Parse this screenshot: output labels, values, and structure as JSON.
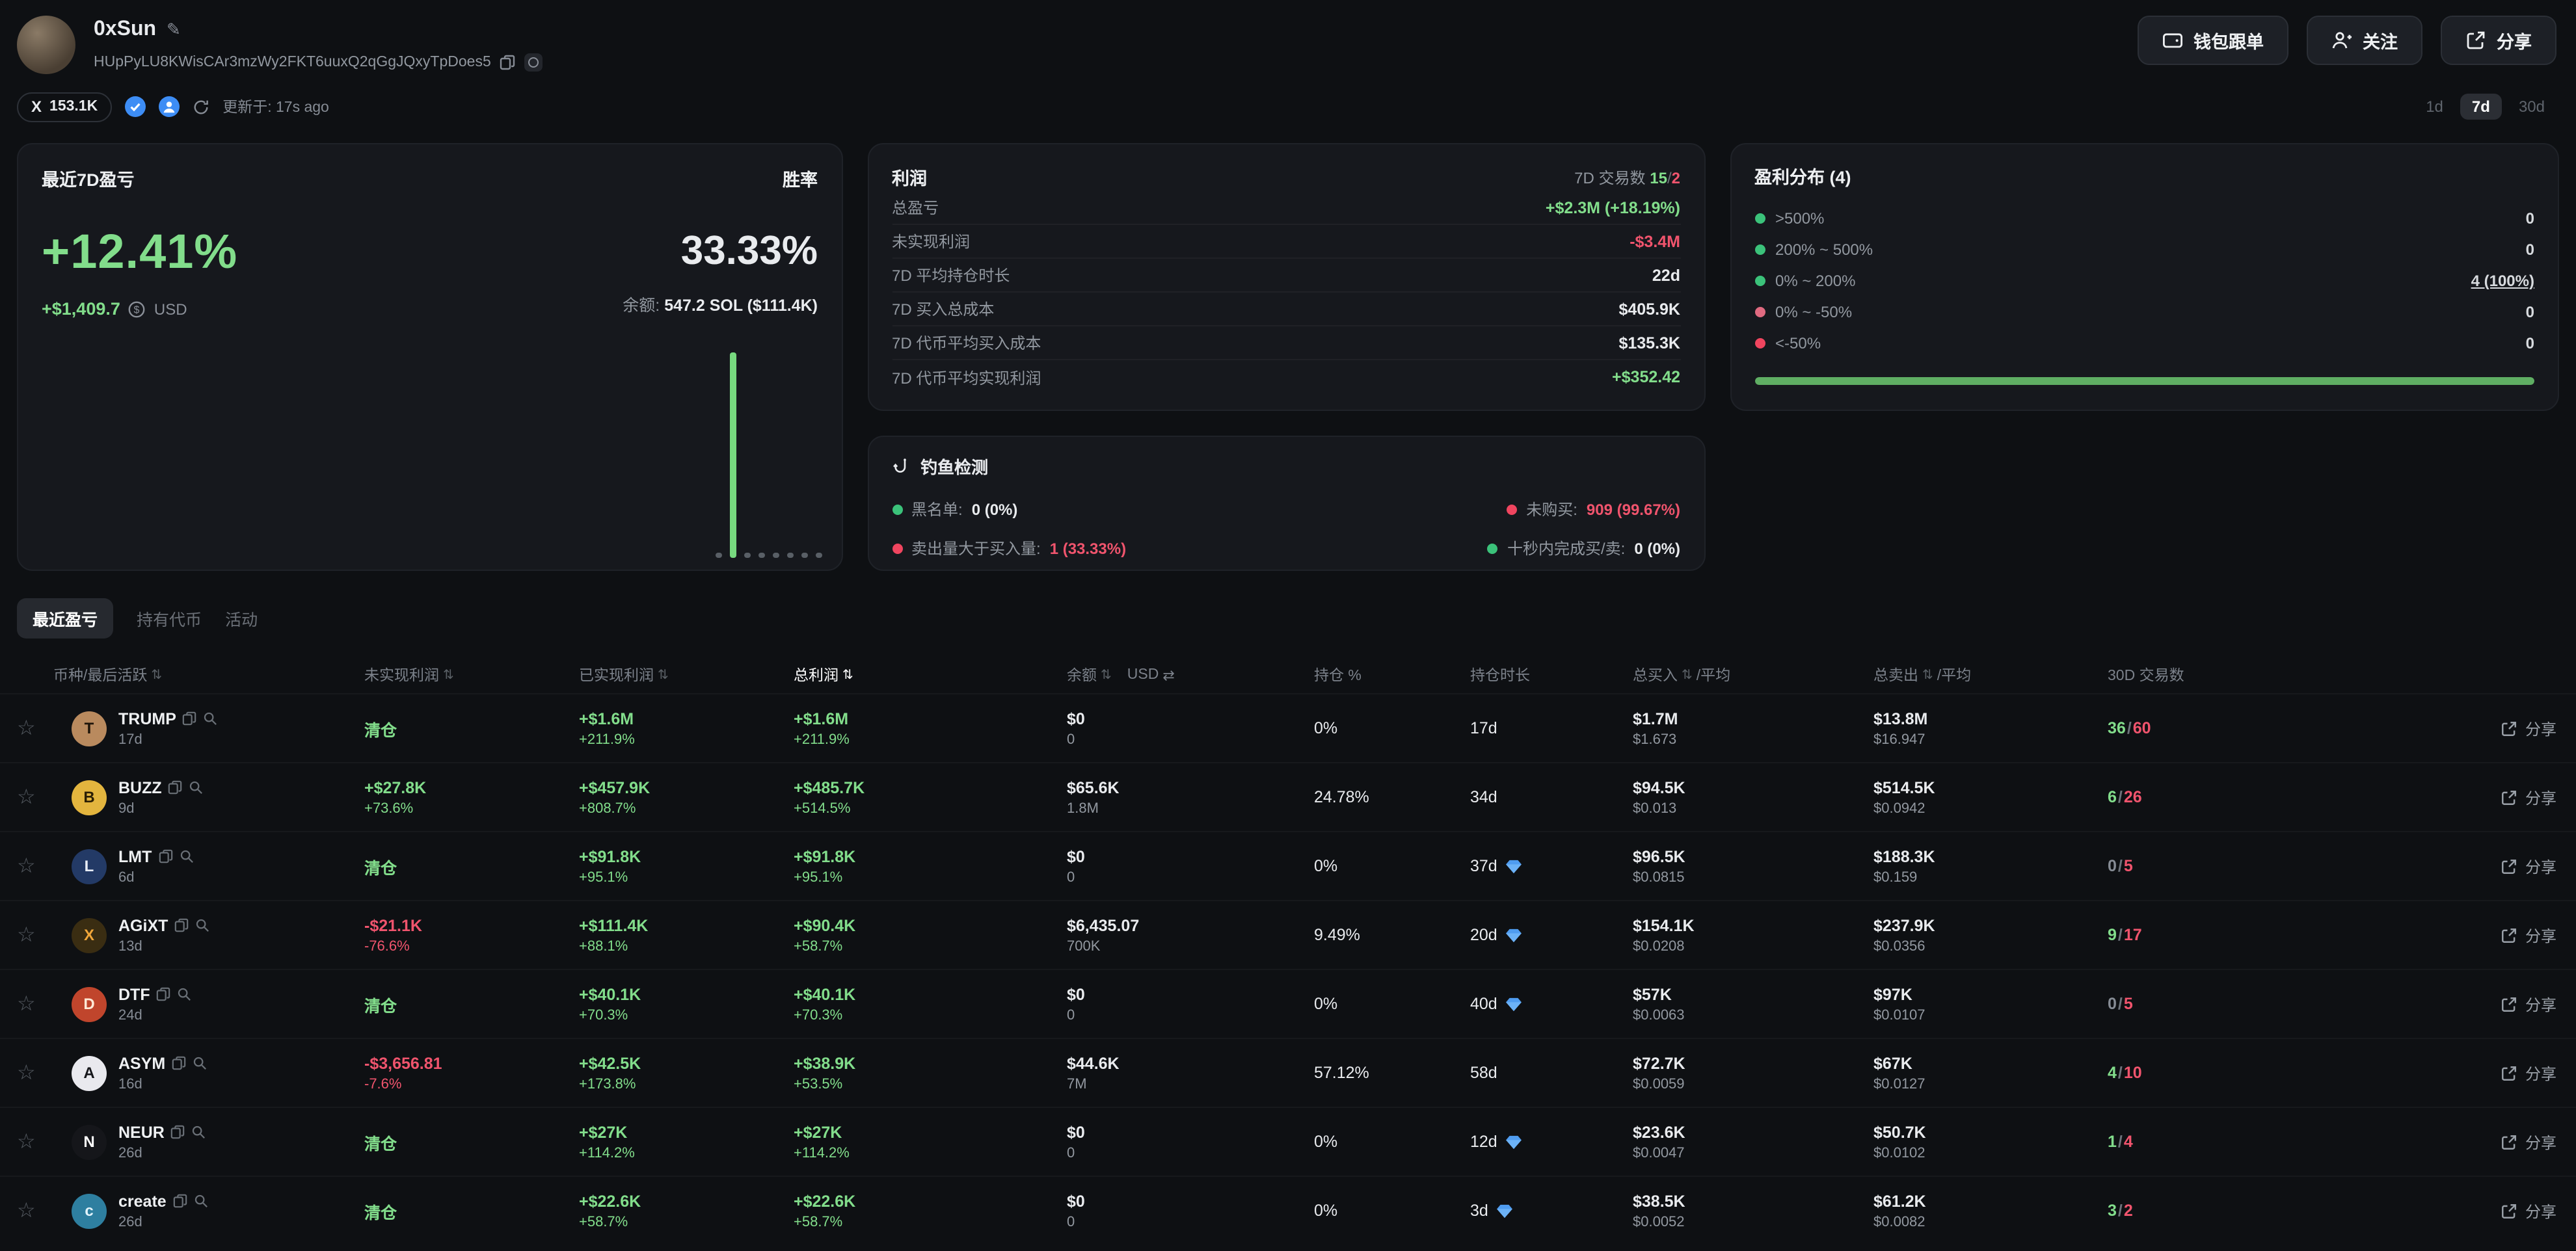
{
  "header": {
    "name": "0xSun",
    "address": "HUpPyLU8KWisCAr3mzWy2FKT6uuxQ2qGgJQxyTpDoes5",
    "copy_trade_btn": "钱包跟单",
    "follow_btn": "关注",
    "share_btn": "分享",
    "x_followers": "153.1K",
    "updated": "更新于: 17s ago",
    "ranges": [
      "1d",
      "7d",
      "30d"
    ],
    "active_range": "7d"
  },
  "pnl": {
    "title": "最近7D盈亏",
    "winrate_label": "胜率",
    "pct": "+12.41%",
    "usd": "+$1,409.7",
    "usd_unit": "USD",
    "winrate": "33.33%",
    "balance_label": "余额:",
    "balance_value": "547.2 SOL ($111.4K)",
    "chart": {
      "bars": [
        4,
        158,
        4,
        4,
        4,
        4,
        4,
        4
      ]
    }
  },
  "profit": {
    "title": "利润",
    "txs_label": "7D 交易数",
    "txs_buy": "15",
    "txs_sep": "/",
    "txs_sell": "2",
    "rows": [
      {
        "label": "总盈亏",
        "value": "+$2.3M (+18.19%)",
        "cls": "green"
      },
      {
        "label": "未实现利润",
        "value": "-$3.4M",
        "cls": "red"
      },
      {
        "label": "7D 平均持仓时长",
        "value": "22d",
        "cls": ""
      },
      {
        "label": "7D 买入总成本",
        "value": "$405.9K",
        "cls": ""
      },
      {
        "label": "7D 代币平均买入成本",
        "value": "$135.3K",
        "cls": ""
      },
      {
        "label": "7D 代币平均实现利润",
        "value": "+$352.42",
        "cls": "green"
      }
    ]
  },
  "distribution": {
    "title": "盈利分布 (4)",
    "rows": [
      {
        "label": ">500%",
        "value": "0",
        "dot": "green",
        "link": false
      },
      {
        "label": "200% ~ 500%",
        "value": "0",
        "dot": "green",
        "link": false
      },
      {
        "label": "0% ~ 200%",
        "value": "4 (100%)",
        "dot": "green",
        "link": true
      },
      {
        "label": "0% ~ -50%",
        "value": "0",
        "dot": "pink",
        "link": false
      },
      {
        "label": "<-50%",
        "value": "0",
        "dot": "red",
        "link": false
      }
    ],
    "bar_pct": 100
  },
  "phishing": {
    "title": "钓鱼检测",
    "items": [
      {
        "label": "黑名单:",
        "value": "0 (0%)",
        "dot": "green",
        "cls": ""
      },
      {
        "label": "卖出量大于买入量:",
        "value": "1 (33.33%)",
        "dot": "red",
        "cls": "red"
      },
      {
        "label": "未购买:",
        "value": "909 (99.67%)",
        "dot": "red",
        "cls": "red"
      },
      {
        "label": "十秒内完成买/卖:",
        "value": "0 (0%)",
        "dot": "green",
        "cls": ""
      }
    ]
  },
  "tabs": [
    {
      "label": "最近盈亏",
      "active": true
    },
    {
      "label": "持有代币",
      "active": false
    },
    {
      "label": "活动",
      "active": false
    }
  ],
  "table": {
    "share_label": "分享",
    "headers": [
      {
        "label": "币种/最后活跃",
        "sort": true
      },
      {
        "label": "未实现利润",
        "sort": true
      },
      {
        "label": "已实现利润",
        "sort": true
      },
      {
        "label": "总利润",
        "sort": true,
        "active": true
      },
      {
        "label": "余额",
        "sort": true,
        "extra": "USD",
        "swap": true
      },
      {
        "label": "持仓 %",
        "sort": false
      },
      {
        "label": "持仓时长",
        "sort": false
      },
      {
        "label": "总买入",
        "sort": true,
        "suffix": "/平均"
      },
      {
        "label": "总卖出",
        "sort": true,
        "suffix": "/平均"
      },
      {
        "label": "30D 交易数",
        "sort": false
      },
      {
        "label": "",
        "sort": false
      }
    ],
    "rows": [
      {
        "token": "TRUMP",
        "last_active": "17d",
        "avatar_bg": "#b98a5e",
        "avatar_fg": "#1d1409",
        "avatar_text": "T",
        "unrealized": {
          "main": "清仓",
          "sub": "",
          "cls": "green"
        },
        "realized": {
          "main": "+$1.6M",
          "sub": "+211.9%",
          "cls": "green"
        },
        "total": {
          "main": "+$1.6M",
          "sub": "+211.9%",
          "cls": "green"
        },
        "balance": {
          "main": "$0",
          "sub": "0"
        },
        "position": "0%",
        "duration": "17d",
        "diamond": false,
        "buy": {
          "main": "$1.7M",
          "sub": "$1.673"
        },
        "sell": {
          "main": "$13.8M",
          "sub": "$16.947"
        },
        "txs": {
          "buy": "36",
          "sell": "60"
        }
      },
      {
        "token": "BUZZ",
        "last_active": "9d",
        "avatar_bg": "#e3b53e",
        "avatar_fg": "#2b1f05",
        "avatar_text": "B",
        "unrealized": {
          "main": "+$27.8K",
          "sub": "+73.6%",
          "cls": "green"
        },
        "realized": {
          "main": "+$457.9K",
          "sub": "+808.7%",
          "cls": "green"
        },
        "total": {
          "main": "+$485.7K",
          "sub": "+514.5%",
          "cls": "green"
        },
        "balance": {
          "main": "$65.6K",
          "sub": "1.8M"
        },
        "position": "24.78%",
        "duration": "34d",
        "diamond": false,
        "buy": {
          "main": "$94.5K",
          "sub": "$0.013"
        },
        "sell": {
          "main": "$514.5K",
          "sub": "$0.0942"
        },
        "txs": {
          "buy": "6",
          "sell": "26"
        }
      },
      {
        "token": "LMT",
        "last_active": "6d",
        "avatar_bg": "#233a66",
        "avatar_fg": "#e8edf5",
        "avatar_text": "L",
        "unrealized": {
          "main": "清仓",
          "sub": "",
          "cls": "green"
        },
        "realized": {
          "main": "+$91.8K",
          "sub": "+95.1%",
          "cls": "green"
        },
        "total": {
          "main": "+$91.8K",
          "sub": "+95.1%",
          "cls": "green"
        },
        "balance": {
          "main": "$0",
          "sub": "0"
        },
        "position": "0%",
        "duration": "37d",
        "diamond": true,
        "buy": {
          "main": "$96.5K",
          "sub": "$0.0815"
        },
        "sell": {
          "main": "$188.3K",
          "sub": "$0.159"
        },
        "txs": {
          "buy": "0",
          "sell": "5"
        }
      },
      {
        "token": "AGiXT",
        "last_active": "13d",
        "avatar_bg": "#3a2d12",
        "avatar_fg": "#f0a63a",
        "avatar_text": "X",
        "unrealized": {
          "main": "-$21.1K",
          "sub": "-76.6%",
          "cls": "red"
        },
        "realized": {
          "main": "+$111.4K",
          "sub": "+88.1%",
          "cls": "green"
        },
        "total": {
          "main": "+$90.4K",
          "sub": "+58.7%",
          "cls": "green"
        },
        "balance": {
          "main": "$6,435.07",
          "sub": "700K"
        },
        "position": "9.49%",
        "duration": "20d",
        "diamond": true,
        "buy": {
          "main": "$154.1K",
          "sub": "$0.0208"
        },
        "sell": {
          "main": "$237.9K",
          "sub": "$0.0356"
        },
        "txs": {
          "buy": "9",
          "sell": "17"
        }
      },
      {
        "token": "DTF",
        "last_active": "24d",
        "avatar_bg": "#c0452c",
        "avatar_fg": "#ffe9d6",
        "avatar_text": "D",
        "unrealized": {
          "main": "清仓",
          "sub": "",
          "cls": "green"
        },
        "realized": {
          "main": "+$40.1K",
          "sub": "+70.3%",
          "cls": "green"
        },
        "total": {
          "main": "+$40.1K",
          "sub": "+70.3%",
          "cls": "green"
        },
        "balance": {
          "main": "$0",
          "sub": "0"
        },
        "position": "0%",
        "duration": "40d",
        "diamond": true,
        "buy": {
          "main": "$57K",
          "sub": "$0.0063"
        },
        "sell": {
          "main": "$97K",
          "sub": "$0.0107"
        },
        "txs": {
          "buy": "0",
          "sell": "5"
        }
      },
      {
        "token": "ASYM",
        "last_active": "16d",
        "avatar_bg": "#e9e9ee",
        "avatar_fg": "#15161a",
        "avatar_text": "A",
        "unrealized": {
          "main": "-$3,656.81",
          "sub": "-7.6%",
          "cls": "red"
        },
        "realized": {
          "main": "+$42.5K",
          "sub": "+173.8%",
          "cls": "green"
        },
        "total": {
          "main": "+$38.9K",
          "sub": "+53.5%",
          "cls": "green"
        },
        "balance": {
          "main": "$44.6K",
          "sub": "7M"
        },
        "position": "57.12%",
        "duration": "58d",
        "diamond": false,
        "buy": {
          "main": "$72.7K",
          "sub": "$0.0059"
        },
        "sell": {
          "main": "$67K",
          "sub": "$0.0127"
        },
        "txs": {
          "buy": "4",
          "sell": "10"
        }
      },
      {
        "token": "NEUR",
        "last_active": "26d",
        "avatar_bg": "#15161a",
        "avatar_fg": "#ffffff",
        "avatar_text": "N",
        "unrealized": {
          "main": "清仓",
          "sub": "",
          "cls": "green"
        },
        "realized": {
          "main": "+$27K",
          "sub": "+114.2%",
          "cls": "green"
        },
        "total": {
          "main": "+$27K",
          "sub": "+114.2%",
          "cls": "green"
        },
        "balance": {
          "main": "$0",
          "sub": "0"
        },
        "position": "0%",
        "duration": "12d",
        "diamond": true,
        "buy": {
          "main": "$23.6K",
          "sub": "$0.0047"
        },
        "sell": {
          "main": "$50.7K",
          "sub": "$0.0102"
        },
        "txs": {
          "buy": "1",
          "sell": "4"
        }
      },
      {
        "token": "create",
        "last_active": "26d",
        "avatar_bg": "#2e7fa0",
        "avatar_fg": "#e3f4fb",
        "avatar_text": "c",
        "unrealized": {
          "main": "清仓",
          "sub": "",
          "cls": "green"
        },
        "realized": {
          "main": "+$22.6K",
          "sub": "+58.7%",
          "cls": "green"
        },
        "total": {
          "main": "+$22.6K",
          "sub": "+58.7%",
          "cls": "green"
        },
        "balance": {
          "main": "$0",
          "sub": "0"
        },
        "position": "0%",
        "duration": "3d",
        "diamond": true,
        "buy": {
          "main": "$38.5K",
          "sub": "$0.0052"
        },
        "sell": {
          "main": "$61.2K",
          "sub": "$0.0082"
        },
        "txs": {
          "buy": "3",
          "sell": "2"
        }
      }
    ]
  }
}
